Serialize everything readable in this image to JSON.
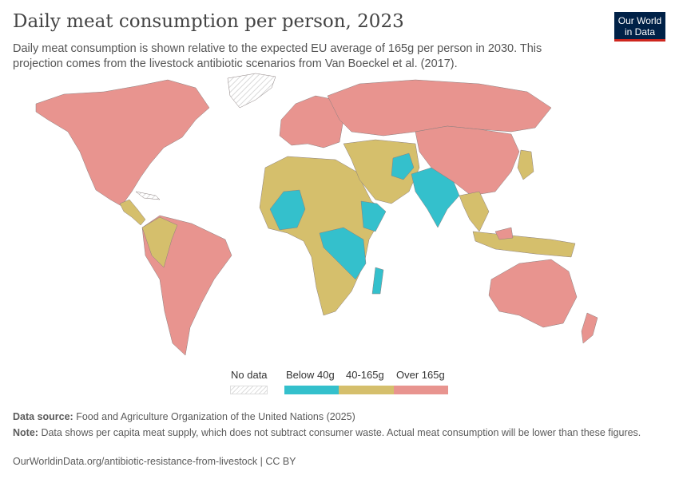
{
  "header": {
    "title": "Daily meat consumption per person, 2023",
    "subtitle": "Daily meat consumption is shown relative to the expected EU average of 165g per person in 2030. This projection comes from the livestock antibiotic scenarios from Van Boeckel et al. (2017).",
    "logo_line1": "Our World",
    "logo_line2": "in Data"
  },
  "legend": {
    "no_data": "No data",
    "bins": [
      {
        "label": "Below 40g",
        "color": "#34c0cc"
      },
      {
        "label": "40-165g",
        "color": "#d5bf6c"
      },
      {
        "label": "Over 165g",
        "color": "#e8948f"
      }
    ]
  },
  "colors": {
    "below": "#34c0cc",
    "mid": "#d5bf6c",
    "over": "#e8948f",
    "no_data": "#e5e5e5"
  },
  "footer": {
    "source_label": "Data source:",
    "source_text": "Food and Agriculture Organization of the United Nations (2025)",
    "note_label": "Note:",
    "note_text": "Data shows per capita meat supply, which does not subtract consumer waste. Actual meat consumption will be lower than these figures.",
    "url": "OurWorldinData.org/antibiotic-resistance-from-livestock | CC BY"
  }
}
